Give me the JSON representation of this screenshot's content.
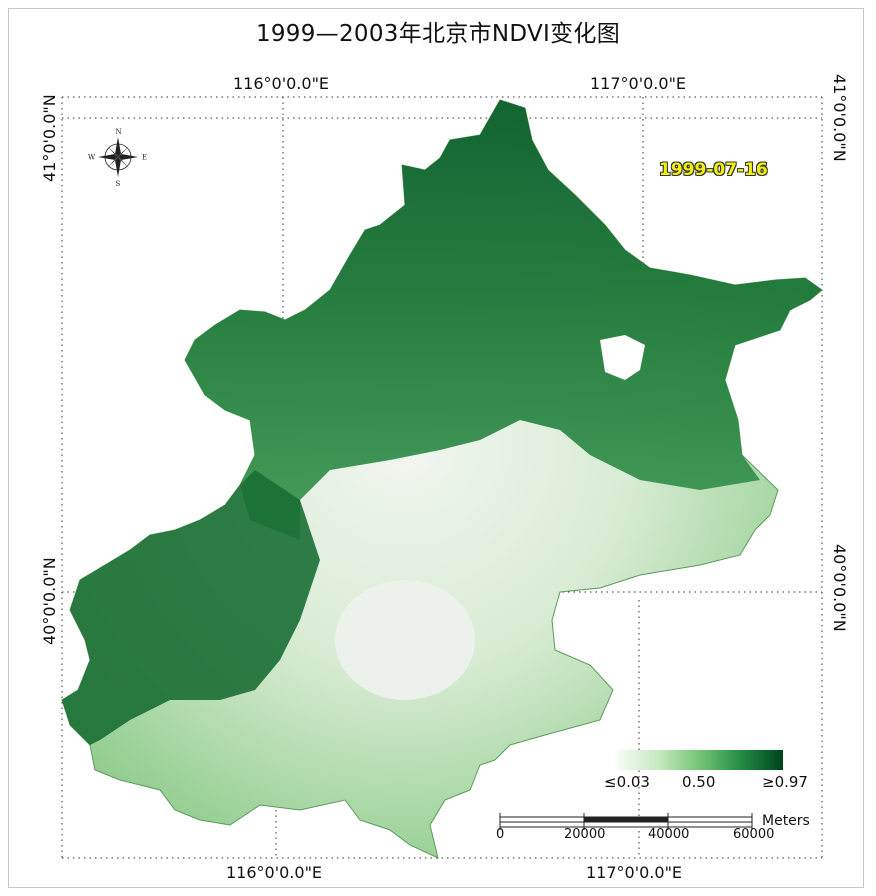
{
  "title": "1999—2003年北京市NDVI变化图",
  "date_label": "1999-07-16",
  "graticule": {
    "lon_116": "116°0'0.0\"E",
    "lon_117": "117°0'0.0\"E",
    "lat_41": "41°0'0.0\"N",
    "lat_40": "40°0'0.0\"N"
  },
  "compass": {
    "n": "N",
    "s": "S",
    "e": "E",
    "w": "W"
  },
  "legend": {
    "min": "≤0.03",
    "mid": "0.50",
    "max": "≥0.97",
    "colors": [
      "#f7fcf5",
      "#c7e9c0",
      "#74c476",
      "#238b45",
      "#00441b"
    ]
  },
  "scale_bar": {
    "ticks": [
      "0",
      "20000",
      "40000",
      "60000"
    ],
    "unit": "Meters"
  }
}
